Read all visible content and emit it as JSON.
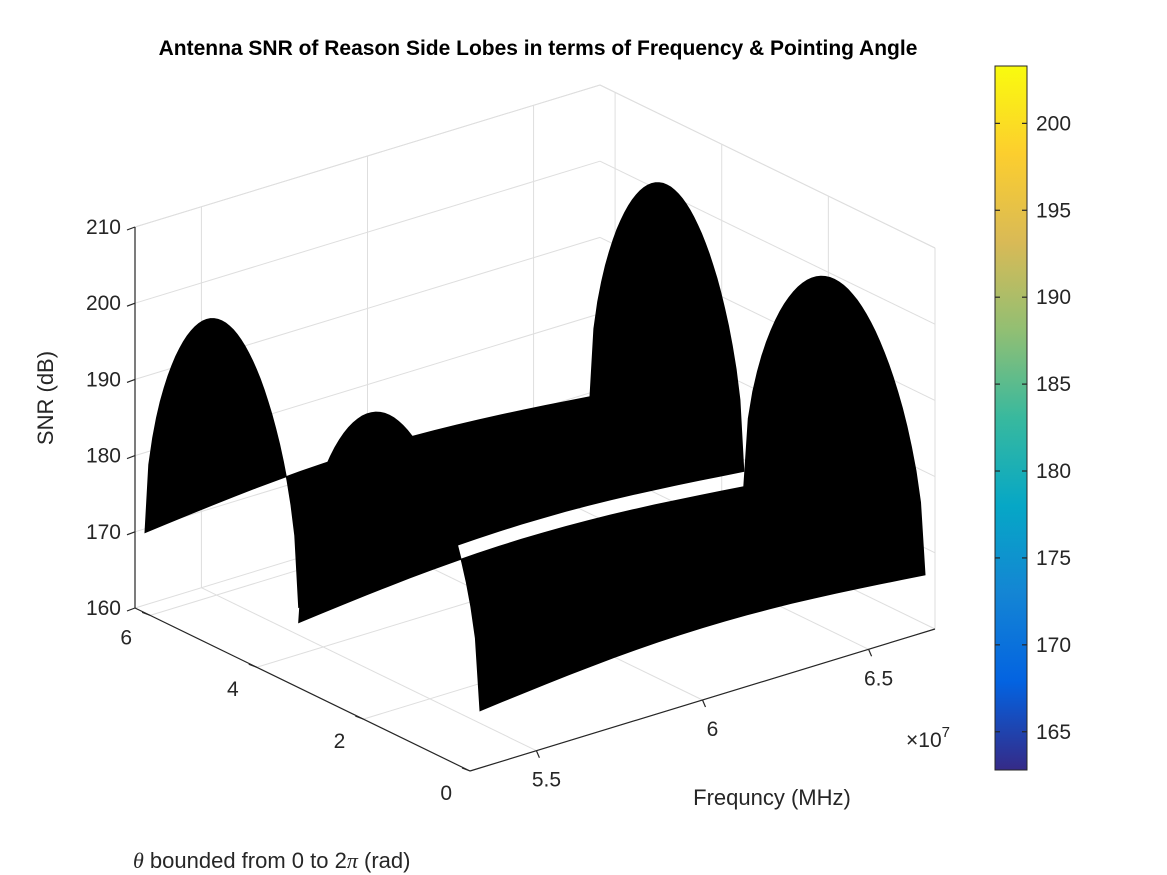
{
  "chart_data": {
    "type": "surface",
    "title": "Antenna SNR of Reason Side Lobes in terms of Frequency & Pointing Angle",
    "xlabel": "Frequncy (MHz)",
    "ylabel": "θ bounded from 0 to 2π (rad)",
    "zlabel": "SNR (dB)",
    "x_exponent_label": "×10",
    "x_exponent_power": "7",
    "xlim": [
      53000000.0,
      67000000.0
    ],
    "ylim": [
      0,
      6.2832
    ],
    "zlim": [
      160,
      210
    ],
    "x_ticks": [
      {
        "value": 55000000.0,
        "label": "5.5"
      },
      {
        "value": 60000000.0,
        "label": "6"
      },
      {
        "value": 65000000.0,
        "label": "6.5"
      }
    ],
    "y_ticks": [
      {
        "value": 0,
        "label": "0"
      },
      {
        "value": 2,
        "label": "2"
      },
      {
        "value": 4,
        "label": "4"
      },
      {
        "value": 6,
        "label": "6"
      }
    ],
    "z_ticks": [
      {
        "value": 160,
        "label": "160"
      },
      {
        "value": 170,
        "label": "170"
      },
      {
        "value": 180,
        "label": "180"
      },
      {
        "value": 190,
        "label": "190"
      },
      {
        "value": 200,
        "label": "200"
      },
      {
        "value": 210,
        "label": "210"
      }
    ],
    "surface_color": "#000000",
    "grid": true,
    "surface_ridges": [
      {
        "theta_from": 3.4,
        "theta_to": 6.2832,
        "snr_min": 170.5,
        "snr_peak": 203.2
      },
      {
        "theta_from": 0.0,
        "theta_to": 3.4,
        "snr_min": 168.5,
        "snr_peak": 201.5
      }
    ],
    "colorbar": {
      "colormap": "parula",
      "range": [
        162.8,
        203.3
      ],
      "ticks": [
        {
          "value": 165,
          "label": "165"
        },
        {
          "value": 170,
          "label": "170"
        },
        {
          "value": 175,
          "label": "175"
        },
        {
          "value": 180,
          "label": "180"
        },
        {
          "value": 185,
          "label": "185"
        },
        {
          "value": 190,
          "label": "190"
        },
        {
          "value": 195,
          "label": "195"
        },
        {
          "value": 200,
          "label": "200"
        }
      ],
      "stops": [
        "#352a87",
        "#0363e1",
        "#1485d4",
        "#06a7c6",
        "#38b99e",
        "#92bf73",
        "#d9ba56",
        "#fcce2e",
        "#f9fb0e"
      ]
    }
  }
}
